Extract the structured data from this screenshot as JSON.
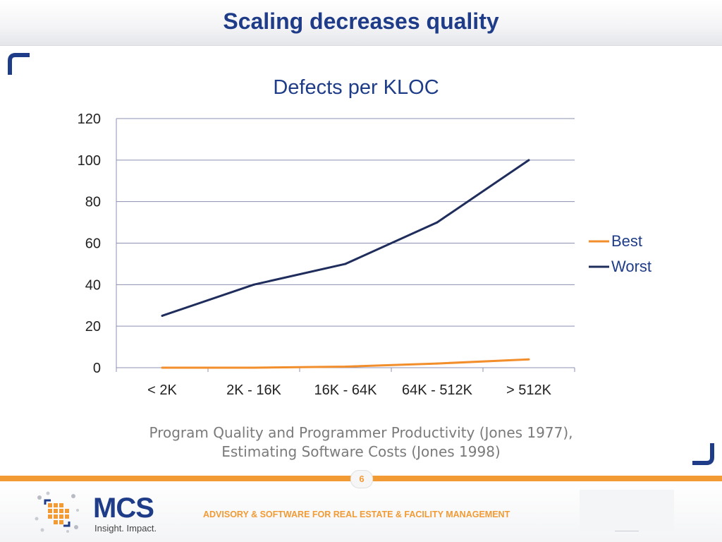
{
  "slide": {
    "title": "Scaling decreases quality",
    "caption_line1": "Program Quality and Programmer Productivity (Jones 1977),",
    "caption_line2": "Estimating Software Costs (Jones 1998)",
    "page_number": "6"
  },
  "footer": {
    "logo_name": "MCS",
    "logo_tagline": "Insight. Impact.",
    "company_tagline": "ADVISORY & SOFTWARE FOR REAL ESTATE & FACILITY MANAGEMENT"
  },
  "colors": {
    "title": "#1f3c88",
    "accent": "#f29a34",
    "best": "#f28e2b",
    "worst": "#1f2d5c"
  },
  "chart_data": {
    "type": "line",
    "title": "Defects per KLOC",
    "categories": [
      "< 2K",
      "2K - 16K",
      "16K - 64K",
      "64K - 512K",
      "> 512K"
    ],
    "series": [
      {
        "name": "Best",
        "values": [
          0,
          0,
          0.5,
          2,
          4
        ],
        "color": "#f28e2b"
      },
      {
        "name": "Worst",
        "values": [
          25,
          40,
          50,
          70,
          100
        ],
        "color": "#1f2d5c"
      }
    ],
    "ylim": [
      0,
      120
    ],
    "yticks": [
      "0",
      "20",
      "40",
      "60",
      "80",
      "100",
      "120"
    ],
    "grid": true,
    "legend": "right"
  }
}
